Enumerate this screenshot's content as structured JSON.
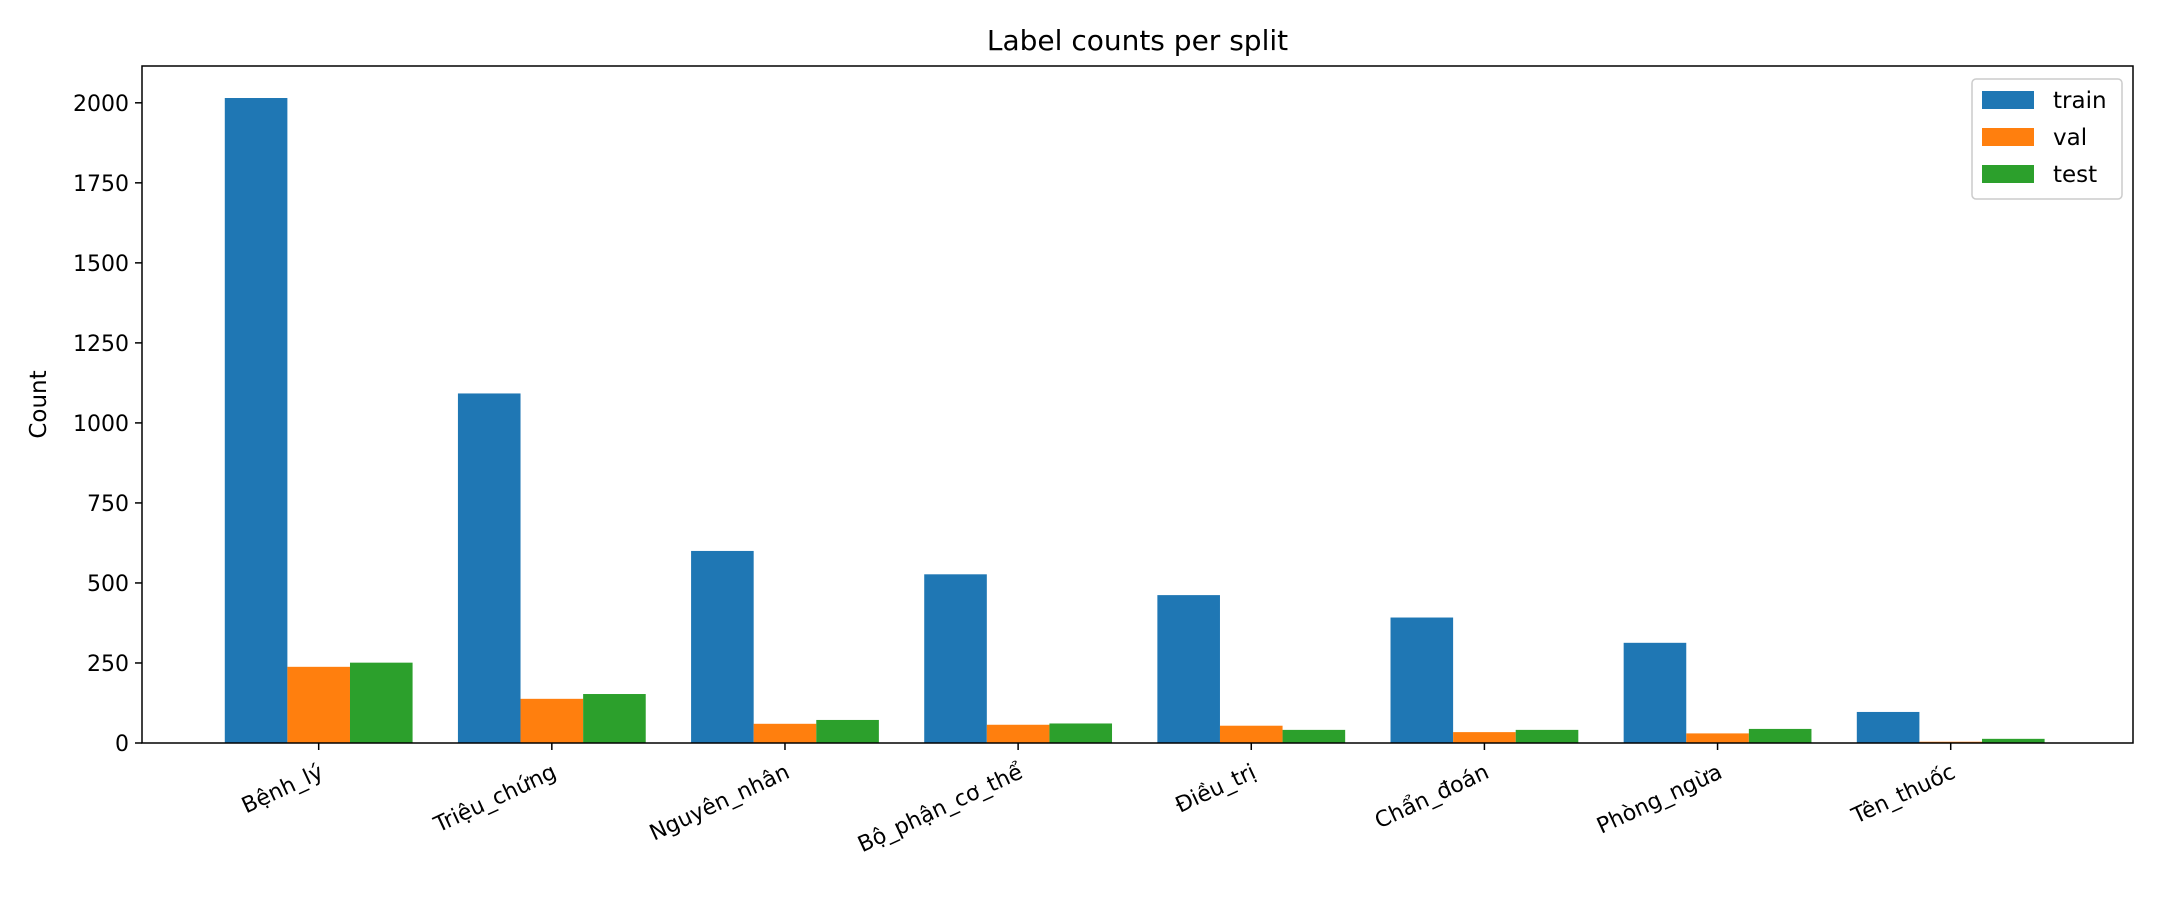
{
  "chart_data": {
    "type": "bar",
    "title": "Label counts per split",
    "xlabel": "",
    "ylabel": "Count",
    "categories": [
      "Bệnh_lý",
      "Triệu_chứng",
      "Nguyên_nhân",
      "Bộ_phận_cơ_thể",
      "Điều_trị",
      "Chẩn_đoán",
      "Phòng_ngừa",
      "Tên_thuốc"
    ],
    "series": [
      {
        "name": "train",
        "color": "#1f77b4",
        "values": [
          2015,
          1092,
          600,
          527,
          462,
          392,
          313,
          97
        ]
      },
      {
        "name": "val",
        "color": "#ff7f0e",
        "values": [
          238,
          138,
          60,
          57,
          54,
          34,
          30,
          4
        ]
      },
      {
        "name": "test",
        "color": "#2ca02c",
        "values": [
          251,
          153,
          72,
          61,
          41,
          41,
          44,
          13
        ]
      }
    ],
    "ylim": [
      0,
      2115
    ],
    "yticks": [
      0,
      250,
      500,
      750,
      1000,
      1250,
      1500,
      1750,
      2000
    ],
    "grid": false,
    "legend": "top-right"
  }
}
